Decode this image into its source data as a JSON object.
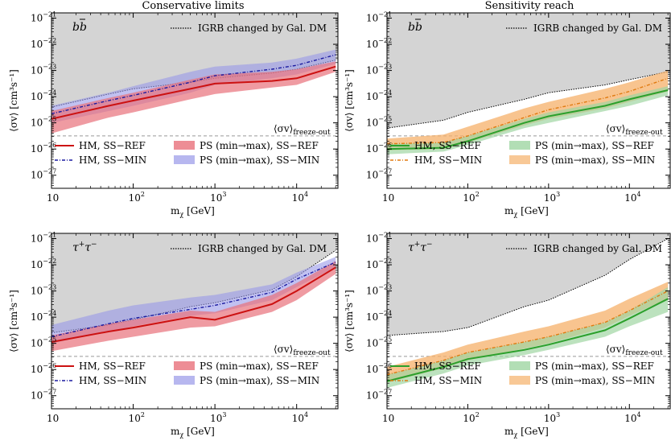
{
  "column_titles": [
    "Conservative limits",
    "Sensitivity reach"
  ],
  "axis": {
    "ylabel": "⟨σv⟩ [cm³s⁻¹]",
    "xlabel": "m",
    "xlabel_sub": "χ",
    "xlabel_unit": " [GeV]",
    "x_ticks": [
      {
        "value": 10,
        "base": "10",
        "exp": ""
      },
      {
        "value": 100,
        "base": "10",
        "exp": "2"
      },
      {
        "value": 1000,
        "base": "10",
        "exp": "3"
      },
      {
        "value": 10000,
        "base": "10",
        "exp": "4"
      }
    ],
    "y_ticks": [
      {
        "exp": -27,
        "label": "−27"
      },
      {
        "exp": -26,
        "label": "−26"
      },
      {
        "exp": -25,
        "label": "−25"
      },
      {
        "exp": -24,
        "label": "−24"
      },
      {
        "exp": -23,
        "label": "−23"
      },
      {
        "exp": -22,
        "label": "−22"
      },
      {
        "exp": -21,
        "label": "−21"
      }
    ],
    "xlim": [
      10,
      32000
    ],
    "ylim_log10": [
      -27.5,
      -20.8
    ]
  },
  "igrb_label": "IGRB changed by Gal. DM",
  "freeze_out": {
    "main": "⟨σv⟩",
    "sub": "freeze-out",
    "value_log10": -25.5
  },
  "colors": {
    "hm_ref": "#cc1111",
    "hm_min": "#1a1aa0",
    "ps_ref_cons": "#e8707a",
    "ps_min_cons": "#9898e8",
    "hm_ref_sens": "#2ca02c",
    "hm_min_sens": "#e07a10",
    "ps_ref_sens": "#9fd6a3",
    "ps_min_sens": "#f5b06a",
    "igrb": "#d4d4d4"
  },
  "chart_data": [
    {
      "type": "line",
      "title": "Conservative limits",
      "channel": {
        "base": "b",
        "bar": true,
        "text": "bb"
      },
      "legend": {
        "hm_ref": "HM, SS−REF",
        "hm_min": "HM, SS−MIN",
        "ps_ref": "PS (min→max), SS−REF",
        "ps_min": "PS (min→max), SS−MIN"
      },
      "style": "cons",
      "x": [
        10,
        50,
        100,
        500,
        1000,
        5000,
        10000,
        30000
      ],
      "igrb_boundary_log10": [
        -24.4,
        -23.9,
        -23.7,
        -23.45,
        -23.3,
        -23.1,
        -22.95,
        -22.6
      ],
      "hm_ref_log10": [
        -24.85,
        -24.35,
        -24.15,
        -23.7,
        -23.5,
        -23.4,
        -23.3,
        -22.85
      ],
      "hm_min_log10": [
        -24.65,
        -24.15,
        -23.95,
        -23.45,
        -23.2,
        -22.95,
        -22.8,
        -22.4
      ],
      "ps_ref_band_log10": {
        "low": [
          -25.4,
          -24.8,
          -24.6,
          -24.1,
          -23.9,
          -23.65,
          -23.55,
          -23.05
        ],
        "high": [
          -24.55,
          -24.05,
          -23.85,
          -23.35,
          -23.15,
          -23.05,
          -22.95,
          -22.65
        ]
      },
      "ps_min_band_log10": {
        "low": [
          -25.0,
          -24.55,
          -24.35,
          -23.85,
          -23.55,
          -23.3,
          -23.15,
          -22.75
        ],
        "high": [
          -24.35,
          -23.85,
          -23.6,
          -23.05,
          -22.85,
          -22.7,
          -22.55,
          -22.2
        ]
      }
    },
    {
      "type": "line",
      "title": "Sensitivity reach",
      "channel": {
        "base": "b",
        "bar": true,
        "text": "bb"
      },
      "legend": {
        "hm_ref": "HM, SS−REF",
        "hm_min": "HM, SS−MIN",
        "ps_ref": "PS (min→max), SS−REF",
        "ps_min": "PS (min→max), SS−MIN"
      },
      "style": "sens",
      "x": [
        10,
        50,
        100,
        500,
        1000,
        5000,
        10000,
        30000
      ],
      "igrb_boundary_log10": [
        -25.2,
        -24.9,
        -24.6,
        -24.1,
        -23.85,
        -23.55,
        -23.35,
        -23.05
      ],
      "hm_ref_log10": [
        -26.0,
        -25.95,
        -25.7,
        -25.0,
        -24.75,
        -24.35,
        -24.1,
        -23.75
      ],
      "hm_min_log10": [
        -25.8,
        -25.75,
        -25.5,
        -24.8,
        -24.5,
        -24.05,
        -23.8,
        -23.3
      ],
      "ps_ref_band_log10": {
        "low": [
          -26.2,
          -26.1,
          -25.85,
          -25.2,
          -25.0,
          -24.55,
          -24.35,
          -23.95
        ],
        "high": [
          -25.8,
          -25.75,
          -25.5,
          -24.85,
          -24.6,
          -24.2,
          -23.95,
          -23.6
        ]
      },
      "ps_min_band_log10": {
        "low": [
          -26.05,
          -26.0,
          -25.75,
          -25.1,
          -24.85,
          -24.45,
          -24.2,
          -23.8
        ],
        "high": [
          -25.6,
          -25.45,
          -25.15,
          -24.45,
          -24.2,
          -23.7,
          -23.45,
          -23.0
        ]
      }
    },
    {
      "type": "line",
      "title": "Conservative limits",
      "channel": {
        "base": "τ",
        "sup": "+",
        "base2": "τ",
        "sup2": "−",
        "text": "τ+τ−"
      },
      "legend": {
        "hm_ref": "HM, SS−REF",
        "hm_min": "HM, SS−MIN",
        "ps_ref": "PS (min→max), SS−REF",
        "ps_min": "PS (min→max), SS−MIN"
      },
      "style": "cons",
      "x": [
        10,
        50,
        100,
        500,
        1000,
        5000,
        10000,
        30000
      ],
      "igrb_boundary_log10": [
        -24.6,
        -24.3,
        -24.1,
        -23.6,
        -23.45,
        -22.95,
        -22.45,
        -21.45
      ],
      "hm_ref_log10": [
        -24.95,
        -24.55,
        -24.4,
        -24.0,
        -24.1,
        -23.5,
        -23.0,
        -22.1
      ],
      "hm_min_log10": [
        -24.75,
        -24.25,
        -24.05,
        -23.7,
        -23.55,
        -23.05,
        -22.55,
        -21.9
      ],
      "ps_ref_band_log10": {
        "low": [
          -25.3,
          -24.9,
          -24.75,
          -24.4,
          -24.35,
          -23.8,
          -23.35,
          -22.35
        ],
        "high": [
          -24.7,
          -24.25,
          -24.1,
          -23.75,
          -23.8,
          -23.15,
          -22.7,
          -21.85
        ]
      },
      "ps_min_band_log10": {
        "low": [
          -25.0,
          -24.55,
          -24.35,
          -23.95,
          -23.85,
          -23.35,
          -22.85,
          -22.1
        ],
        "high": [
          -24.3,
          -23.75,
          -23.55,
          -23.25,
          -23.15,
          -22.75,
          -22.3,
          -21.7
        ]
      }
    },
    {
      "type": "line",
      "title": "Sensitivity reach",
      "channel": {
        "base": "τ",
        "sup": "+",
        "base2": "τ",
        "sup2": "−",
        "text": "τ+τ−"
      },
      "legend": {
        "hm_ref": "HM, SS−REF",
        "hm_min": "HM, SS−MIN",
        "ps_ref": "PS (min→max), SS−REF",
        "ps_min": "PS (min→max), SS−MIN"
      },
      "style": "sens",
      "x": [
        10,
        50,
        100,
        500,
        1000,
        5000,
        10000,
        30000
      ],
      "igrb_boundary_log10": [
        -24.7,
        -24.55,
        -24.4,
        -23.6,
        -23.35,
        -22.4,
        -21.8,
        -21.0
      ],
      "hm_ref_log10": [
        -26.45,
        -25.9,
        -25.6,
        -25.25,
        -25.05,
        -24.5,
        -24.05,
        -23.3
      ],
      "hm_min_log10": [
        -26.2,
        -25.65,
        -25.35,
        -24.95,
        -24.75,
        -24.2,
        -23.75,
        -23.0
      ],
      "ps_ref_band_log10": {
        "low": [
          -26.7,
          -26.15,
          -25.85,
          -25.45,
          -25.25,
          -24.75,
          -24.35,
          -23.8
        ],
        "high": [
          -26.2,
          -25.65,
          -25.35,
          -24.95,
          -24.75,
          -24.2,
          -23.75,
          -22.85
        ]
      },
      "ps_min_band_log10": {
        "low": [
          -26.5,
          -25.95,
          -25.65,
          -25.2,
          -25.0,
          -24.4,
          -23.95,
          -23.3
        ],
        "high": [
          -25.9,
          -25.35,
          -25.05,
          -24.55,
          -24.35,
          -23.75,
          -23.3,
          -22.65
        ]
      }
    }
  ]
}
